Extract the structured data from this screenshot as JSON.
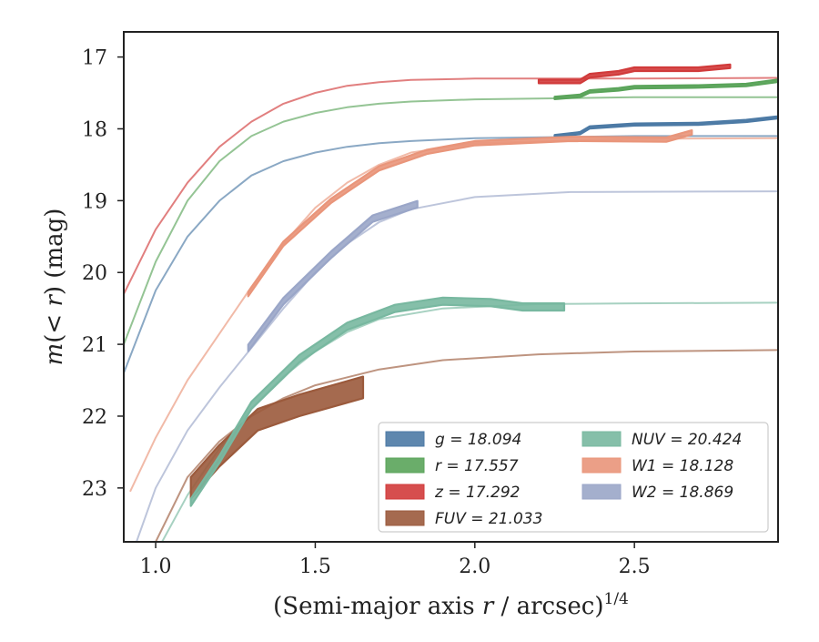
{
  "chart_data": {
    "type": "line",
    "xlabel": "(Semi-major axis r / arcsec)^1/4",
    "ylabel": "m(< r) (mag)",
    "xlim": [
      0.9,
      2.95
    ],
    "ylim": [
      23.75,
      16.65
    ],
    "y_inverted": true,
    "grid": false,
    "legend_position": "lower-right",
    "x_ticks": [
      1.0,
      1.5,
      2.0,
      2.5
    ],
    "x_tick_labels": [
      "1.0",
      "1.5",
      "2.0",
      "2.5"
    ],
    "y_ticks": [
      17,
      18,
      19,
      20,
      21,
      22,
      23
    ],
    "y_tick_labels": [
      "17",
      "18",
      "19",
      "20",
      "21",
      "22",
      "23"
    ],
    "series": [
      {
        "name": "g = 18.094",
        "legend_label": "g = 18.094",
        "color": "#4c7aa5",
        "model": [
          [
            0.9,
            21.4
          ],
          [
            1.0,
            20.25
          ],
          [
            1.1,
            19.5
          ],
          [
            1.2,
            19.0
          ],
          [
            1.3,
            18.65
          ],
          [
            1.4,
            18.45
          ],
          [
            1.5,
            18.33
          ],
          [
            1.6,
            18.25
          ],
          [
            1.7,
            18.2
          ],
          [
            1.8,
            18.17
          ],
          [
            2.0,
            18.13
          ],
          [
            2.5,
            18.1
          ],
          [
            2.95,
            18.1
          ]
        ],
        "profile": [
          [
            2.25,
            18.1
          ],
          [
            2.33,
            18.06
          ],
          [
            2.36,
            17.98
          ],
          [
            2.5,
            17.94
          ],
          [
            2.7,
            17.93
          ],
          [
            2.85,
            17.89
          ],
          [
            2.95,
            17.84
          ]
        ],
        "band_width": 0.03
      },
      {
        "name": "r = 17.557",
        "legend_label": "r = 17.557",
        "color": "#5aa45a",
        "model": [
          [
            0.9,
            21.0
          ],
          [
            1.0,
            19.85
          ],
          [
            1.1,
            19.0
          ],
          [
            1.2,
            18.45
          ],
          [
            1.3,
            18.1
          ],
          [
            1.4,
            17.9
          ],
          [
            1.5,
            17.78
          ],
          [
            1.6,
            17.7
          ],
          [
            1.7,
            17.65
          ],
          [
            1.8,
            17.62
          ],
          [
            2.0,
            17.59
          ],
          [
            2.5,
            17.56
          ],
          [
            2.95,
            17.56
          ]
        ],
        "profile": [
          [
            2.25,
            17.57
          ],
          [
            2.33,
            17.54
          ],
          [
            2.36,
            17.48
          ],
          [
            2.45,
            17.45
          ],
          [
            2.5,
            17.42
          ],
          [
            2.7,
            17.41
          ],
          [
            2.85,
            17.39
          ],
          [
            2.95,
            17.33
          ]
        ],
        "band_width": 0.035
      },
      {
        "name": "z = 17.292",
        "legend_label": "z = 17.292",
        "color": "#d13b3b",
        "model": [
          [
            0.9,
            20.3
          ],
          [
            1.0,
            19.4
          ],
          [
            1.1,
            18.75
          ],
          [
            1.2,
            18.25
          ],
          [
            1.3,
            17.9
          ],
          [
            1.4,
            17.65
          ],
          [
            1.5,
            17.5
          ],
          [
            1.6,
            17.4
          ],
          [
            1.7,
            17.35
          ],
          [
            1.8,
            17.32
          ],
          [
            2.0,
            17.3
          ],
          [
            2.5,
            17.3
          ],
          [
            2.95,
            17.29
          ]
        ],
        "profile": [
          [
            2.2,
            17.34
          ],
          [
            2.33,
            17.34
          ],
          [
            2.36,
            17.26
          ],
          [
            2.45,
            17.22
          ],
          [
            2.5,
            17.17
          ],
          [
            2.7,
            17.17
          ],
          [
            2.8,
            17.13
          ]
        ],
        "band_width": 0.05
      },
      {
        "name": "FUV = 21.033",
        "legend_label": "FUV = 21.033",
        "color": "#9b5a3c",
        "model": [
          [
            1.0,
            23.75
          ],
          [
            1.05,
            23.3
          ],
          [
            1.1,
            22.85
          ],
          [
            1.2,
            22.35
          ],
          [
            1.3,
            22.0
          ],
          [
            1.4,
            21.75
          ],
          [
            1.5,
            21.57
          ],
          [
            1.7,
            21.35
          ],
          [
            1.9,
            21.22
          ],
          [
            2.2,
            21.14
          ],
          [
            2.5,
            21.1
          ],
          [
            2.95,
            21.08
          ]
        ],
        "profile": [
          [
            1.11,
            23.0
          ],
          [
            1.2,
            22.55
          ],
          [
            1.32,
            22.05
          ],
          [
            1.45,
            21.85
          ],
          [
            1.65,
            21.6
          ]
        ],
        "band_width": 0.3
      },
      {
        "name": "NUV = 20.424",
        "legend_label": "NUV = 20.424",
        "color": "#78b8a0",
        "model": [
          [
            1.02,
            23.75
          ],
          [
            1.1,
            23.1
          ],
          [
            1.2,
            22.45
          ],
          [
            1.3,
            21.9
          ],
          [
            1.4,
            21.45
          ],
          [
            1.5,
            21.1
          ],
          [
            1.6,
            20.83
          ],
          [
            1.7,
            20.65
          ],
          [
            1.9,
            20.5
          ],
          [
            2.2,
            20.44
          ],
          [
            2.5,
            20.43
          ],
          [
            2.95,
            20.42
          ]
        ],
        "profile": [
          [
            1.11,
            23.2
          ],
          [
            1.2,
            22.6
          ],
          [
            1.3,
            21.85
          ],
          [
            1.45,
            21.2
          ],
          [
            1.6,
            20.75
          ],
          [
            1.75,
            20.5
          ],
          [
            1.9,
            20.4
          ],
          [
            2.05,
            20.42
          ],
          [
            2.15,
            20.48
          ],
          [
            2.28,
            20.48
          ]
        ],
        "band_width": 0.1
      },
      {
        "name": "W1 = 18.128",
        "legend_label": "W1 = 18.128",
        "color": "#e9957a",
        "model": [
          [
            0.92,
            23.05
          ],
          [
            1.0,
            22.3
          ],
          [
            1.1,
            21.5
          ],
          [
            1.2,
            20.85
          ],
          [
            1.3,
            20.2
          ],
          [
            1.4,
            19.6
          ],
          [
            1.5,
            19.1
          ],
          [
            1.6,
            18.75
          ],
          [
            1.7,
            18.5
          ],
          [
            1.8,
            18.33
          ],
          [
            2.0,
            18.2
          ],
          [
            2.5,
            18.14
          ],
          [
            2.95,
            18.13
          ]
        ],
        "profile": [
          [
            1.29,
            20.3
          ],
          [
            1.4,
            19.6
          ],
          [
            1.55,
            19.0
          ],
          [
            1.7,
            18.55
          ],
          [
            1.85,
            18.32
          ],
          [
            2.0,
            18.2
          ],
          [
            2.3,
            18.14
          ],
          [
            2.6,
            18.15
          ],
          [
            2.68,
            18.05
          ]
        ],
        "band_width": 0.06
      },
      {
        "name": "W2 = 18.869",
        "legend_label": "W2 = 18.869",
        "color": "#9aa6c8",
        "model": [
          [
            0.94,
            23.75
          ],
          [
            1.0,
            23.0
          ],
          [
            1.1,
            22.2
          ],
          [
            1.2,
            21.6
          ],
          [
            1.3,
            21.05
          ],
          [
            1.4,
            20.5
          ],
          [
            1.5,
            20.0
          ],
          [
            1.6,
            19.6
          ],
          [
            1.7,
            19.3
          ],
          [
            1.8,
            19.12
          ],
          [
            2.0,
            18.95
          ],
          [
            2.3,
            18.88
          ],
          [
            2.95,
            18.87
          ]
        ],
        "profile": [
          [
            1.29,
            21.05
          ],
          [
            1.4,
            20.4
          ],
          [
            1.55,
            19.75
          ],
          [
            1.68,
            19.25
          ],
          [
            1.82,
            19.05
          ]
        ],
        "band_width": 0.09
      }
    ]
  }
}
